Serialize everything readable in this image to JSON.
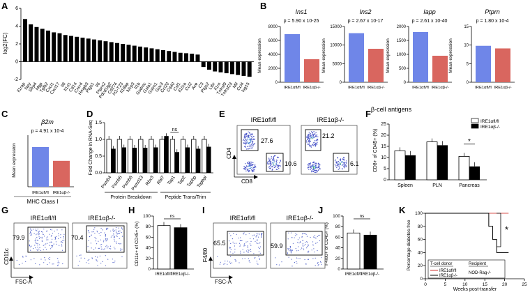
{
  "panels": {
    "A": {
      "label": "A"
    },
    "B": {
      "label": "B",
      "group_label": "β-cell antigens"
    },
    "C": {
      "label": "C",
      "group_label": "MHC Class I"
    },
    "D": {
      "label": "D",
      "group1": "Protein Breakdown",
      "group2": "Peptide Trans/Trim"
    },
    "E": {
      "label": "E",
      "title_left": "IRE1αfl/fl",
      "title_right": "IRE1αβ-/-",
      "xlab": "CD8",
      "ylab": "CD4",
      "gates_left": [
        "27.6",
        "10.6"
      ],
      "gates_right": [
        "21.2",
        "6.1"
      ]
    },
    "F": {
      "label": "F"
    },
    "G": {
      "label": "G",
      "title_left": "IRE1αfl/fl",
      "title_right": "IRE1αβ-/-",
      "xlab": "FSC-A",
      "ylab": "CD11c",
      "gate_left": "79.9",
      "gate_right": "70.4"
    },
    "H": {
      "label": "H",
      "ns": "ns"
    },
    "I": {
      "label": "I",
      "title_left": "IRE1αfl/fl",
      "title_right": "IRE1αβ-/-",
      "xlab": "FSC-A",
      "ylab": "F4/80",
      "gate_left": "65.5",
      "gate_right": "59.9"
    },
    "J": {
      "label": "J",
      "ns": "ns"
    },
    "K": {
      "label": "K",
      "donor_header": "T-cell donor",
      "recipient_header": "Recipient",
      "recipient": "NOD-Rag-/-",
      "donor1": "IRE1αfl/fl",
      "donor2": "IRE1αβ-/-",
      "star": "*"
    }
  },
  "chart_data": [
    {
      "panel": "A",
      "type": "bar",
      "ylabel": "log2(FC)",
      "ylim": [
        -2,
        6
      ],
      "yticks": [
        "6",
        "4",
        "2",
        "0",
        "-2"
      ],
      "categories": [
        "Il1rap",
        "Npy",
        "Sfrp4",
        "Mgp",
        "Tgfb2",
        "Cxcl1",
        "Cxcl17",
        "Il8",
        "Il1rl1",
        "Cd14",
        "Cxcr4",
        "Hmgb3",
        "Ptgs1",
        "Il6",
        "Ptprn2",
        "Pdcd1lg2",
        "Cd274",
        "H2-T23",
        "Il18bp",
        "Nlrp3",
        "Il1b",
        "Gsdmc",
        "Gsta1",
        "Gstm1",
        "Gpx3",
        "Ccl20",
        "Cd40",
        "Csf1",
        "Il10ra",
        "Ccl2",
        "Ace",
        "C3",
        "Ptgs2",
        "Ltbr",
        "Il1rn",
        "Tnfrsf9",
        "Tnfrsf23",
        "Mif",
        "Ccl4",
        "Isg15"
      ],
      "values": [
        4.8,
        4.2,
        3.9,
        3.7,
        3.5,
        3.3,
        3.2,
        3.0,
        2.9,
        2.8,
        2.7,
        2.6,
        2.5,
        2.4,
        2.3,
        2.2,
        2.1,
        2.0,
        1.9,
        1.8,
        1.7,
        1.6,
        1.5,
        1.4,
        1.3,
        1.2,
        1.1,
        1.0,
        0.95,
        0.9,
        0.8,
        -0.6,
        -0.9,
        -1.1,
        -1.2,
        -1.3,
        -1.4,
        -1.5,
        -1.6,
        -1.7
      ]
    },
    {
      "panel": "B",
      "type": "bar",
      "ylabel": "Mean expression",
      "categories": [
        "IRE1αfl/fl",
        "IRE1αβ-/-"
      ],
      "subplots": [
        {
          "title": "Ins1",
          "pvalue": "p = 5.90 x 10-25",
          "ylim": [
            0,
            8000
          ],
          "yticks": [
            "8000",
            "6000",
            "4000",
            "2000",
            "0"
          ],
          "values": [
            6900,
            3300
          ]
        },
        {
          "title": "Ins2",
          "pvalue": "p = 2.67 x 10-17",
          "ylim": [
            0,
            15000
          ],
          "yticks": [
            "15000",
            "10000",
            "5000",
            "0"
          ],
          "values": [
            13200,
            9000
          ]
        },
        {
          "title": "Iapp",
          "pvalue": "p = 2.61 x 10-40",
          "ylim": [
            0,
            2000
          ],
          "yticks": [
            "2000",
            "1500",
            "1000",
            "500",
            "0"
          ],
          "values": [
            1800,
            950
          ]
        },
        {
          "title": "Ptprn",
          "pvalue": "p = 1.80 x 10-4",
          "ylim": [
            0,
            15
          ],
          "yticks": [
            "15",
            "10",
            "5",
            "0"
          ],
          "values": [
            9.8,
            9.1
          ]
        }
      ]
    },
    {
      "panel": "C",
      "type": "bar",
      "title": "β2m",
      "pvalue": "p = 4.91 x 10-4",
      "ylabel": "Mean expression",
      "categories": [
        "IRE1αfl/fl",
        "IRE1αβ-/-"
      ],
      "values": [
        9.5,
        6.2
      ],
      "ylim": [
        0,
        14
      ]
    },
    {
      "panel": "D",
      "type": "bar",
      "ylabel": "Fold Change in RNA-Seq",
      "ylim": [
        0,
        1.5
      ],
      "yticks": [
        "1.5",
        "1.0",
        "0.5",
        "0.0"
      ],
      "categories": [
        "Psmb4",
        "Psmb5",
        "Psmb6",
        "Psmd13",
        "Rbx3",
        "Rbl7",
        "Tap1",
        "Tap2",
        "Tapbp",
        "Tapbpl"
      ],
      "series": [
        {
          "values": [
            1.0,
            1.0,
            1.0,
            1.0,
            1.0,
            1.0,
            1.0,
            1.0,
            1.0,
            1.0
          ]
        },
        {
          "values": [
            0.72,
            0.76,
            0.75,
            0.75,
            0.76,
            1.1,
            0.62,
            0.76,
            0.72,
            0.78
          ]
        }
      ],
      "annotation": "ns"
    },
    {
      "panel": "F",
      "type": "bar",
      "ylabel": "CD8+ of CD45+ (%)",
      "ylim": [
        0,
        25
      ],
      "yticks": [
        "25",
        "20",
        "15",
        "10",
        "5",
        "0"
      ],
      "categories": [
        "Spleen",
        "PLN",
        "Pancreas"
      ],
      "series": [
        {
          "name": "IRE1αfl/fl",
          "values": [
            13,
            17,
            10.5
          ]
        },
        {
          "name": "IRE1αβ-/-",
          "values": [
            11,
            15.5,
            6
          ]
        }
      ],
      "annotation": "*"
    },
    {
      "panel": "H",
      "type": "bar",
      "ylabel": "CD11c+ of CD45+ (%)",
      "ylim": [
        0,
        100
      ],
      "yticks": [
        "100",
        "80",
        "60",
        "40",
        "20",
        "0"
      ],
      "categories": [
        "IRE1αfl/fl",
        "IRE1αβ-/-"
      ],
      "values": [
        82,
        78
      ]
    },
    {
      "panel": "J",
      "type": "bar",
      "ylabel": "F4/80+ of CD45+ (%)",
      "ylim": [
        0,
        100
      ],
      "yticks": [
        "100",
        "80",
        "60",
        "40",
        "20",
        "0"
      ],
      "categories": [
        "IRE1αfl/fl",
        "IRE1αβ-/-"
      ],
      "values": [
        68,
        64
      ]
    },
    {
      "panel": "K",
      "type": "line",
      "ylabel": "Percentage diabetes-free",
      "xlabel": "Weeks post-transfer",
      "xlim": [
        0,
        25
      ],
      "ylim": [
        0,
        100
      ],
      "xticks": [
        "0",
        "5",
        "10",
        "15",
        "20",
        "25"
      ],
      "yticks": [
        "100",
        "80",
        "60",
        "40",
        "20",
        "0"
      ],
      "series": [
        {
          "name": "IRE1αfl/fl",
          "x": [
            0,
            21
          ],
          "y": [
            100,
            100
          ]
        },
        {
          "name": "IRE1αβ-/-",
          "x": [
            0,
            16,
            16,
            17,
            17,
            18,
            18,
            21
          ],
          "y": [
            100,
            100,
            80,
            80,
            60,
            60,
            40,
            40
          ]
        }
      ]
    }
  ]
}
